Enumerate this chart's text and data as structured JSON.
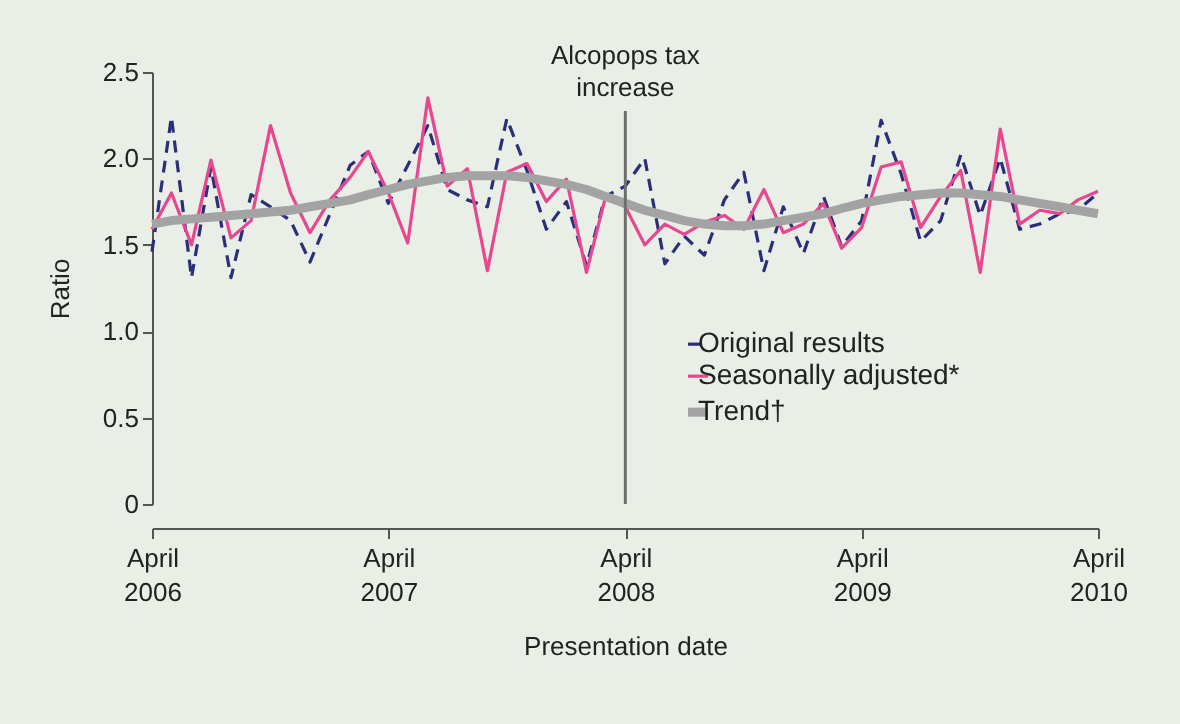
{
  "chart_data": {
    "type": "line",
    "xlabel": "Presentation date",
    "ylabel": "Ratio",
    "x": [
      "2006-04",
      "2006-05",
      "2006-06",
      "2006-07",
      "2006-08",
      "2006-09",
      "2006-10",
      "2006-11",
      "2006-12",
      "2007-01",
      "2007-02",
      "2007-03",
      "2007-04",
      "2007-05",
      "2007-06",
      "2007-07",
      "2007-08",
      "2007-09",
      "2007-10",
      "2007-11",
      "2007-12",
      "2008-01",
      "2008-02",
      "2008-03",
      "2008-04",
      "2008-05",
      "2008-06",
      "2008-07",
      "2008-08",
      "2008-09",
      "2008-10",
      "2008-11",
      "2008-12",
      "2009-01",
      "2009-02",
      "2009-03",
      "2009-04",
      "2009-05",
      "2009-06",
      "2009-07",
      "2009-08",
      "2009-09",
      "2009-10",
      "2009-11",
      "2009-12",
      "2010-01",
      "2010-02",
      "2010-03",
      "2010-04"
    ],
    "series": [
      {
        "name": "Original results",
        "color": "#2b2f7a",
        "line_style": "dashed",
        "values": [
          1.46,
          2.24,
          1.31,
          1.95,
          1.31,
          1.79,
          1.72,
          1.64,
          1.4,
          1.68,
          1.96,
          2.04,
          1.74,
          1.96,
          2.19,
          1.82,
          1.76,
          1.72,
          2.23,
          1.93,
          1.59,
          1.75,
          1.38,
          1.78,
          1.84,
          2.0,
          1.39,
          1.55,
          1.44,
          1.76,
          1.92,
          1.35,
          1.72,
          1.45,
          1.78,
          1.49,
          1.64,
          2.22,
          1.91,
          1.52,
          1.64,
          2.02,
          1.67,
          2.0,
          1.59,
          1.62,
          1.68,
          1.7,
          1.8
        ]
      },
      {
        "name": "Seasonally adjusted*",
        "color": "#e8478f",
        "line_style": "solid",
        "values": [
          1.59,
          1.8,
          1.5,
          1.99,
          1.54,
          1.64,
          2.19,
          1.8,
          1.57,
          1.76,
          1.89,
          2.04,
          1.8,
          1.51,
          2.35,
          1.84,
          1.94,
          1.35,
          1.92,
          1.97,
          1.75,
          1.88,
          1.34,
          1.77,
          1.72,
          1.5,
          1.62,
          1.56,
          1.63,
          1.67,
          1.59,
          1.82,
          1.57,
          1.62,
          1.74,
          1.48,
          1.6,
          1.95,
          1.98,
          1.6,
          1.78,
          1.93,
          1.34,
          2.17,
          1.62,
          1.7,
          1.68,
          1.76,
          1.81
        ]
      },
      {
        "name": "Trend†",
        "color": "#a3a3a3",
        "line_style": "solid",
        "values": [
          1.62,
          1.64,
          1.65,
          1.66,
          1.67,
          1.68,
          1.69,
          1.7,
          1.72,
          1.74,
          1.76,
          1.79,
          1.82,
          1.85,
          1.87,
          1.89,
          1.9,
          1.9,
          1.9,
          1.89,
          1.87,
          1.85,
          1.82,
          1.78,
          1.74,
          1.7,
          1.67,
          1.64,
          1.62,
          1.61,
          1.61,
          1.62,
          1.64,
          1.66,
          1.68,
          1.71,
          1.74,
          1.76,
          1.78,
          1.79,
          1.8,
          1.8,
          1.79,
          1.78,
          1.76,
          1.74,
          1.72,
          1.7,
          1.68
        ]
      }
    ],
    "xlim": [
      "2006-04",
      "2010-04"
    ],
    "xticks": [
      {
        "value": "2006-04",
        "label": "April 2006"
      },
      {
        "value": "2007-04",
        "label": "April 2007"
      },
      {
        "value": "2008-04",
        "label": "April 2008"
      },
      {
        "value": "2009-04",
        "label": "April 2009"
      },
      {
        "value": "2010-04",
        "label": "April 2010"
      }
    ],
    "ylim": [
      0,
      2.5
    ],
    "yticks": [
      {
        "value": 0,
        "label": "0"
      },
      {
        "value": 0.5,
        "label": "0.5"
      },
      {
        "value": 1,
        "label": "1.0"
      },
      {
        "value": 1.5,
        "label": "1.5"
      },
      {
        "value": 2,
        "label": "2.0"
      },
      {
        "value": 2.5,
        "label": "2.5"
      }
    ],
    "ref_lines": [
      {
        "axis": "x",
        "value": "2008-04",
        "label": "Alcopops tax increase",
        "color": "#6e6e6e"
      }
    ],
    "legend": "right",
    "grid": false,
    "marker": "none"
  }
}
